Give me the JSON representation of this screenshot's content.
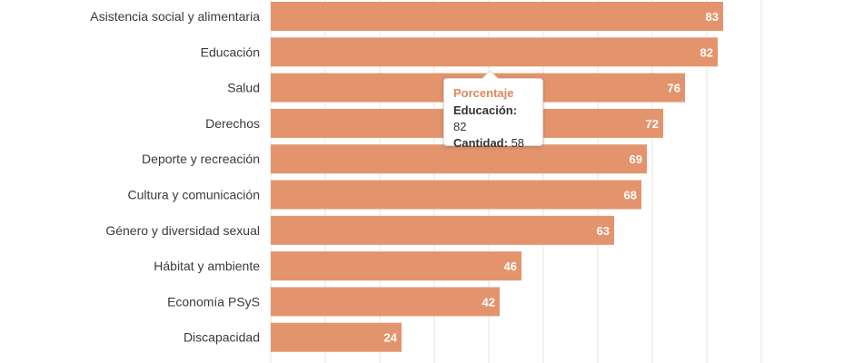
{
  "chart_data": {
    "type": "bar",
    "orientation": "horizontal",
    "categories": [
      "Asistencia social y alimentaria",
      "Educación",
      "Salud",
      "Derechos",
      "Deporte y recreación",
      "Cultura y comunicación",
      "Género y diversidad sexual",
      "Hábitat y ambiente",
      "Economía PSyS",
      "Discapacidad"
    ],
    "values": [
      83,
      82,
      76,
      72,
      69,
      68,
      63,
      46,
      42,
      24
    ],
    "xlim": [
      0,
      90
    ],
    "grid": true,
    "bar_color": "#e4946d"
  },
  "tooltip": {
    "title": "Porcentaje",
    "row1_key": "Educación:",
    "row1_value": "82",
    "row2_key": "Cantidad:",
    "row2_value": "58"
  }
}
